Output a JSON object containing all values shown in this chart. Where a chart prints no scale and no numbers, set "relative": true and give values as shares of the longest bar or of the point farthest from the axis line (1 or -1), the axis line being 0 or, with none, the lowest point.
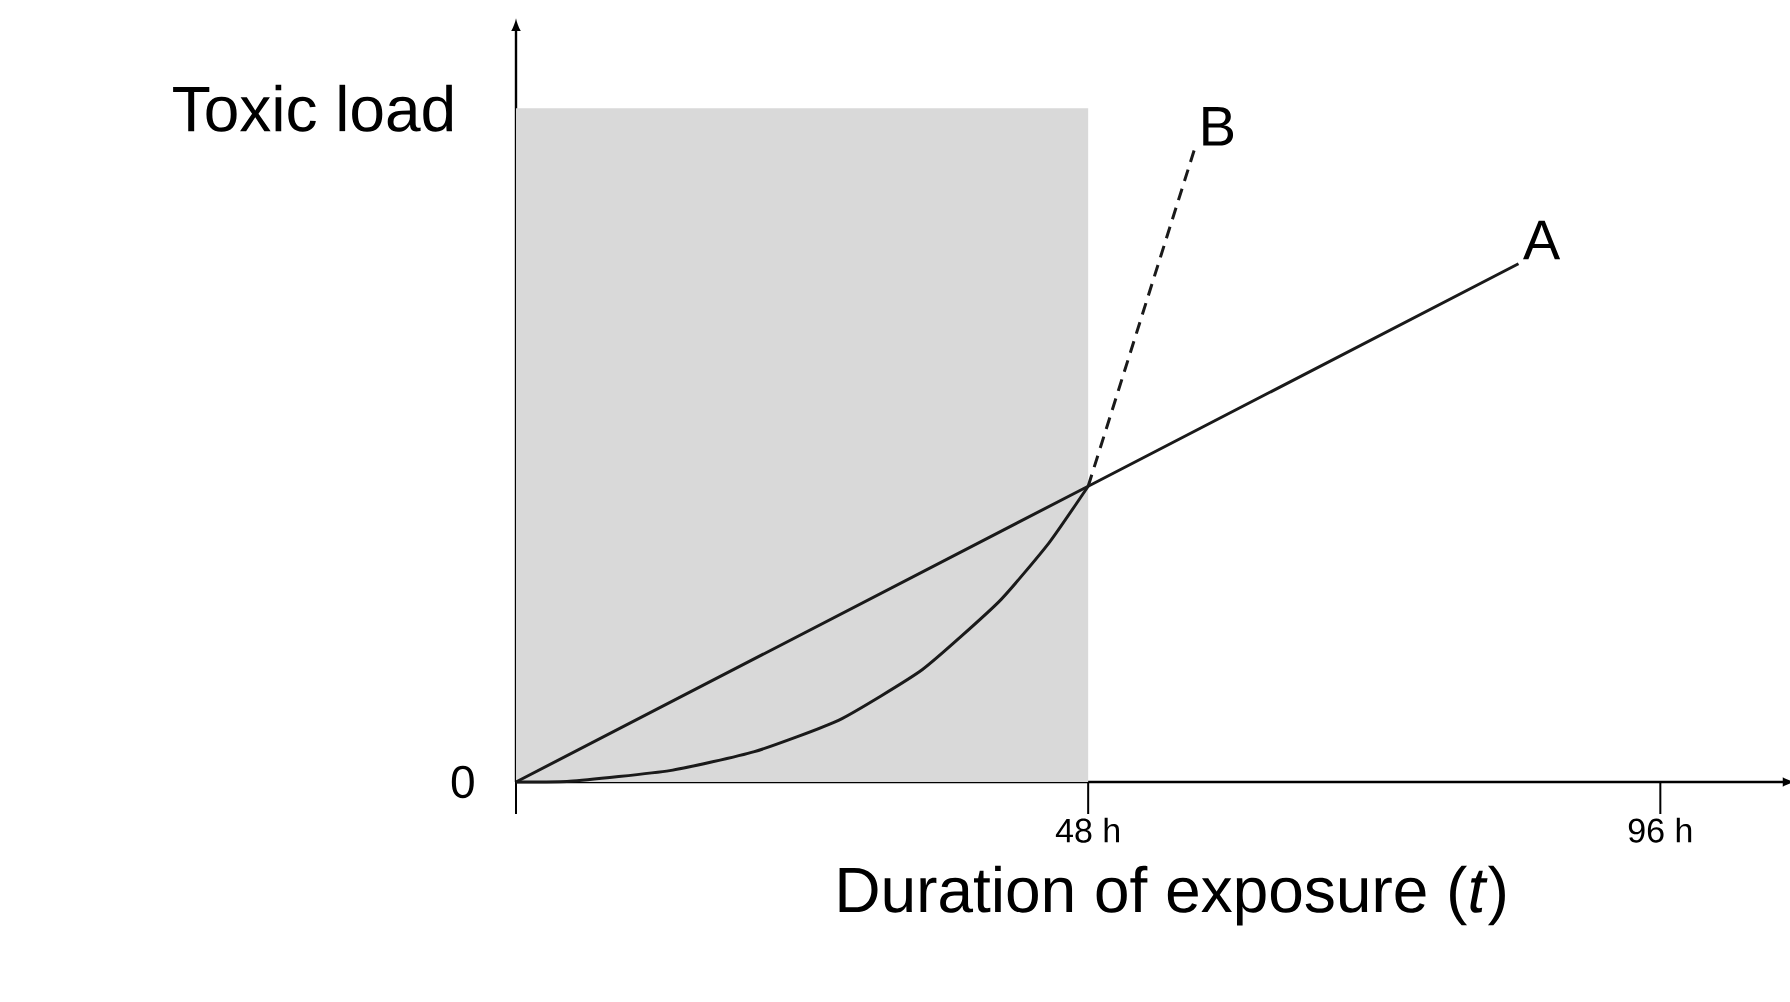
{
  "chart_data": {
    "type": "line",
    "relative": true,
    "xlabel": "Duration of exposure (*t*)",
    "ylabel": "Toxic load",
    "xlim": [
      0,
      106
    ],
    "xticks": [
      {
        "value": 0,
        "label": null
      },
      {
        "value": 48,
        "label": "48 h"
      },
      {
        "value": 96,
        "label": "96 h"
      }
    ],
    "annotations": [
      {
        "text": "0",
        "x": 0,
        "y": 0
      }
    ],
    "bands": [
      {
        "axis": "x",
        "from": 0,
        "to": 48,
        "color": "#d9d9d9"
      }
    ],
    "series": [
      {
        "name": "A",
        "color": "#1a1a1a",
        "line_style": "solid",
        "x": [
          0,
          48,
          84.1
        ],
        "values": [
          0,
          0.468,
          0.82
        ]
      },
      {
        "color": "#1a1a1a",
        "line_style": "solid",
        "x": [
          0,
          4.5,
          12.9,
          20.0,
          27.1,
          34.1,
          40.5,
          44.7,
          48
        ],
        "values": [
          0,
          0.001,
          0.018,
          0.048,
          0.098,
          0.178,
          0.285,
          0.378,
          0.468
        ]
      },
      {
        "name": "B",
        "color": "#1a1a1a",
        "line_style": "dashed",
        "x": [
          48,
          56.9
        ],
        "values": [
          0.468,
          1
        ]
      }
    ]
  }
}
